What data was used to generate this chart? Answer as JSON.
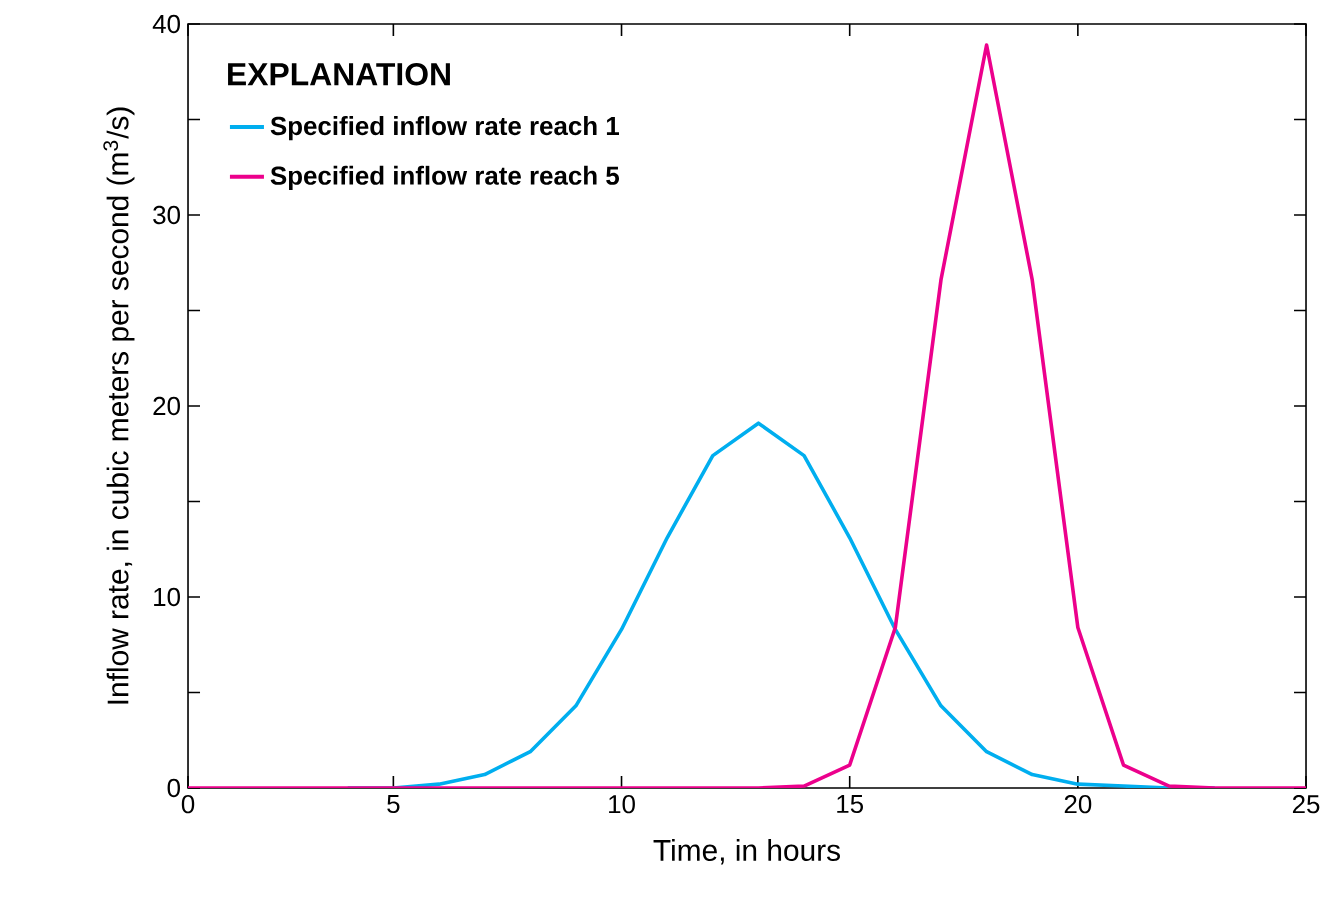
{
  "chart_data": {
    "type": "line",
    "xlabel": "Time, in hours",
    "ylabel": "Inflow rate, in cubic meters per second (m$^{3}$/s)",
    "legend_title": "EXPLANATION",
    "x": [
      0.5,
      1,
      2,
      3,
      4,
      5,
      6,
      7,
      8,
      9,
      10,
      11,
      12,
      13,
      14,
      15,
      16,
      17,
      18,
      19,
      20,
      21,
      22,
      23,
      24,
      25
    ],
    "series": [
      {
        "name": "Specified inflow rate reach 1",
        "color": "#00aeef",
        "values": [
          null,
          null,
          null,
          null,
          0,
          0,
          0.2,
          0.7,
          1.9,
          4.3,
          8.3,
          13.1,
          17.4,
          19.1,
          17.4,
          13.1,
          8.3,
          4.3,
          1.9,
          0.7,
          0.2,
          0.1,
          0,
          0,
          null,
          null
        ]
      },
      {
        "name": "Specified inflow rate reach 5",
        "color": "#ec008c",
        "values": [
          0,
          0,
          0,
          0,
          0,
          0,
          0,
          0,
          0,
          0,
          0,
          0,
          0,
          0,
          0.1,
          1.2,
          8.4,
          26.6,
          38.9,
          26.6,
          8.4,
          1.2,
          0.1,
          0,
          0,
          0
        ]
      }
    ],
    "xlim": [
      0.5,
      25
    ],
    "xticks": [
      {
        "value": 0.5,
        "label": "0"
      },
      5,
      10,
      15,
      20,
      25
    ],
    "ylim": [
      0,
      40
    ],
    "yticks": [
      0,
      {
        "value": 5,
        "label": null
      },
      10,
      {
        "value": 15,
        "label": null
      },
      20,
      {
        "value": 25,
        "label": null
      },
      30,
      {
        "value": 35,
        "label": null
      },
      40
    ],
    "legend": "top left",
    "marker": "none",
    "line_style": "solid",
    "grid": false
  }
}
